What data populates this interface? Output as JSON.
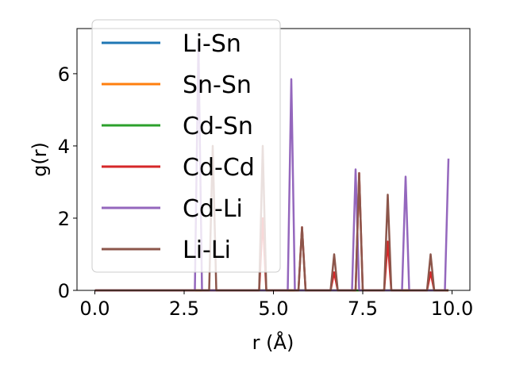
{
  "chart_data": {
    "type": "line",
    "xlabel": "r (Å)",
    "ylabel": "g(r)",
    "xlim": [
      -0.5,
      10.5
    ],
    "ylim": [
      0,
      7.25
    ],
    "x_ticks": [
      0.0,
      2.5,
      5.0,
      7.5,
      10.0
    ],
    "x_tick_labels": [
      "0.0",
      "2.5",
      "5.0",
      "7.5",
      "10.0"
    ],
    "y_ticks": [
      0,
      2,
      4,
      6
    ],
    "y_tick_labels": [
      "0",
      "2",
      "4",
      "6"
    ],
    "grid": false,
    "legend_position": "top-left",
    "series": [
      {
        "name": "Li-Sn",
        "color": "#1f77b4",
        "peaks": []
      },
      {
        "name": "Sn-Sn",
        "color": "#ff7f0e",
        "peaks": []
      },
      {
        "name": "Cd-Sn",
        "color": "#2ca02c",
        "peaks": []
      },
      {
        "name": "Cd-Cd",
        "color": "#d62728",
        "peaks": [
          {
            "x": 4.7,
            "y": 2.0
          },
          {
            "x": 5.8,
            "y": 1.75
          },
          {
            "x": 6.7,
            "y": 0.5
          },
          {
            "x": 7.4,
            "y": 3.25
          },
          {
            "x": 8.2,
            "y": 1.35
          },
          {
            "x": 9.4,
            "y": 0.5
          }
        ]
      },
      {
        "name": "Cd-Li",
        "color": "#9467bd",
        "peaks": [
          {
            "x": 2.9,
            "y": 6.9
          },
          {
            "x": 5.5,
            "y": 5.85
          },
          {
            "x": 7.3,
            "y": 3.35
          },
          {
            "x": 8.7,
            "y": 3.15
          },
          {
            "x": 9.9,
            "y": 3.65
          }
        ]
      },
      {
        "name": "Li-Li",
        "color": "#8c564b",
        "peaks": [
          {
            "x": 3.3,
            "y": 4.0
          },
          {
            "x": 4.7,
            "y": 4.0
          },
          {
            "x": 5.8,
            "y": 1.75
          },
          {
            "x": 6.7,
            "y": 1.0
          },
          {
            "x": 7.4,
            "y": 3.25
          },
          {
            "x": 8.2,
            "y": 2.65
          },
          {
            "x": 9.4,
            "y": 1.0
          }
        ]
      }
    ]
  }
}
